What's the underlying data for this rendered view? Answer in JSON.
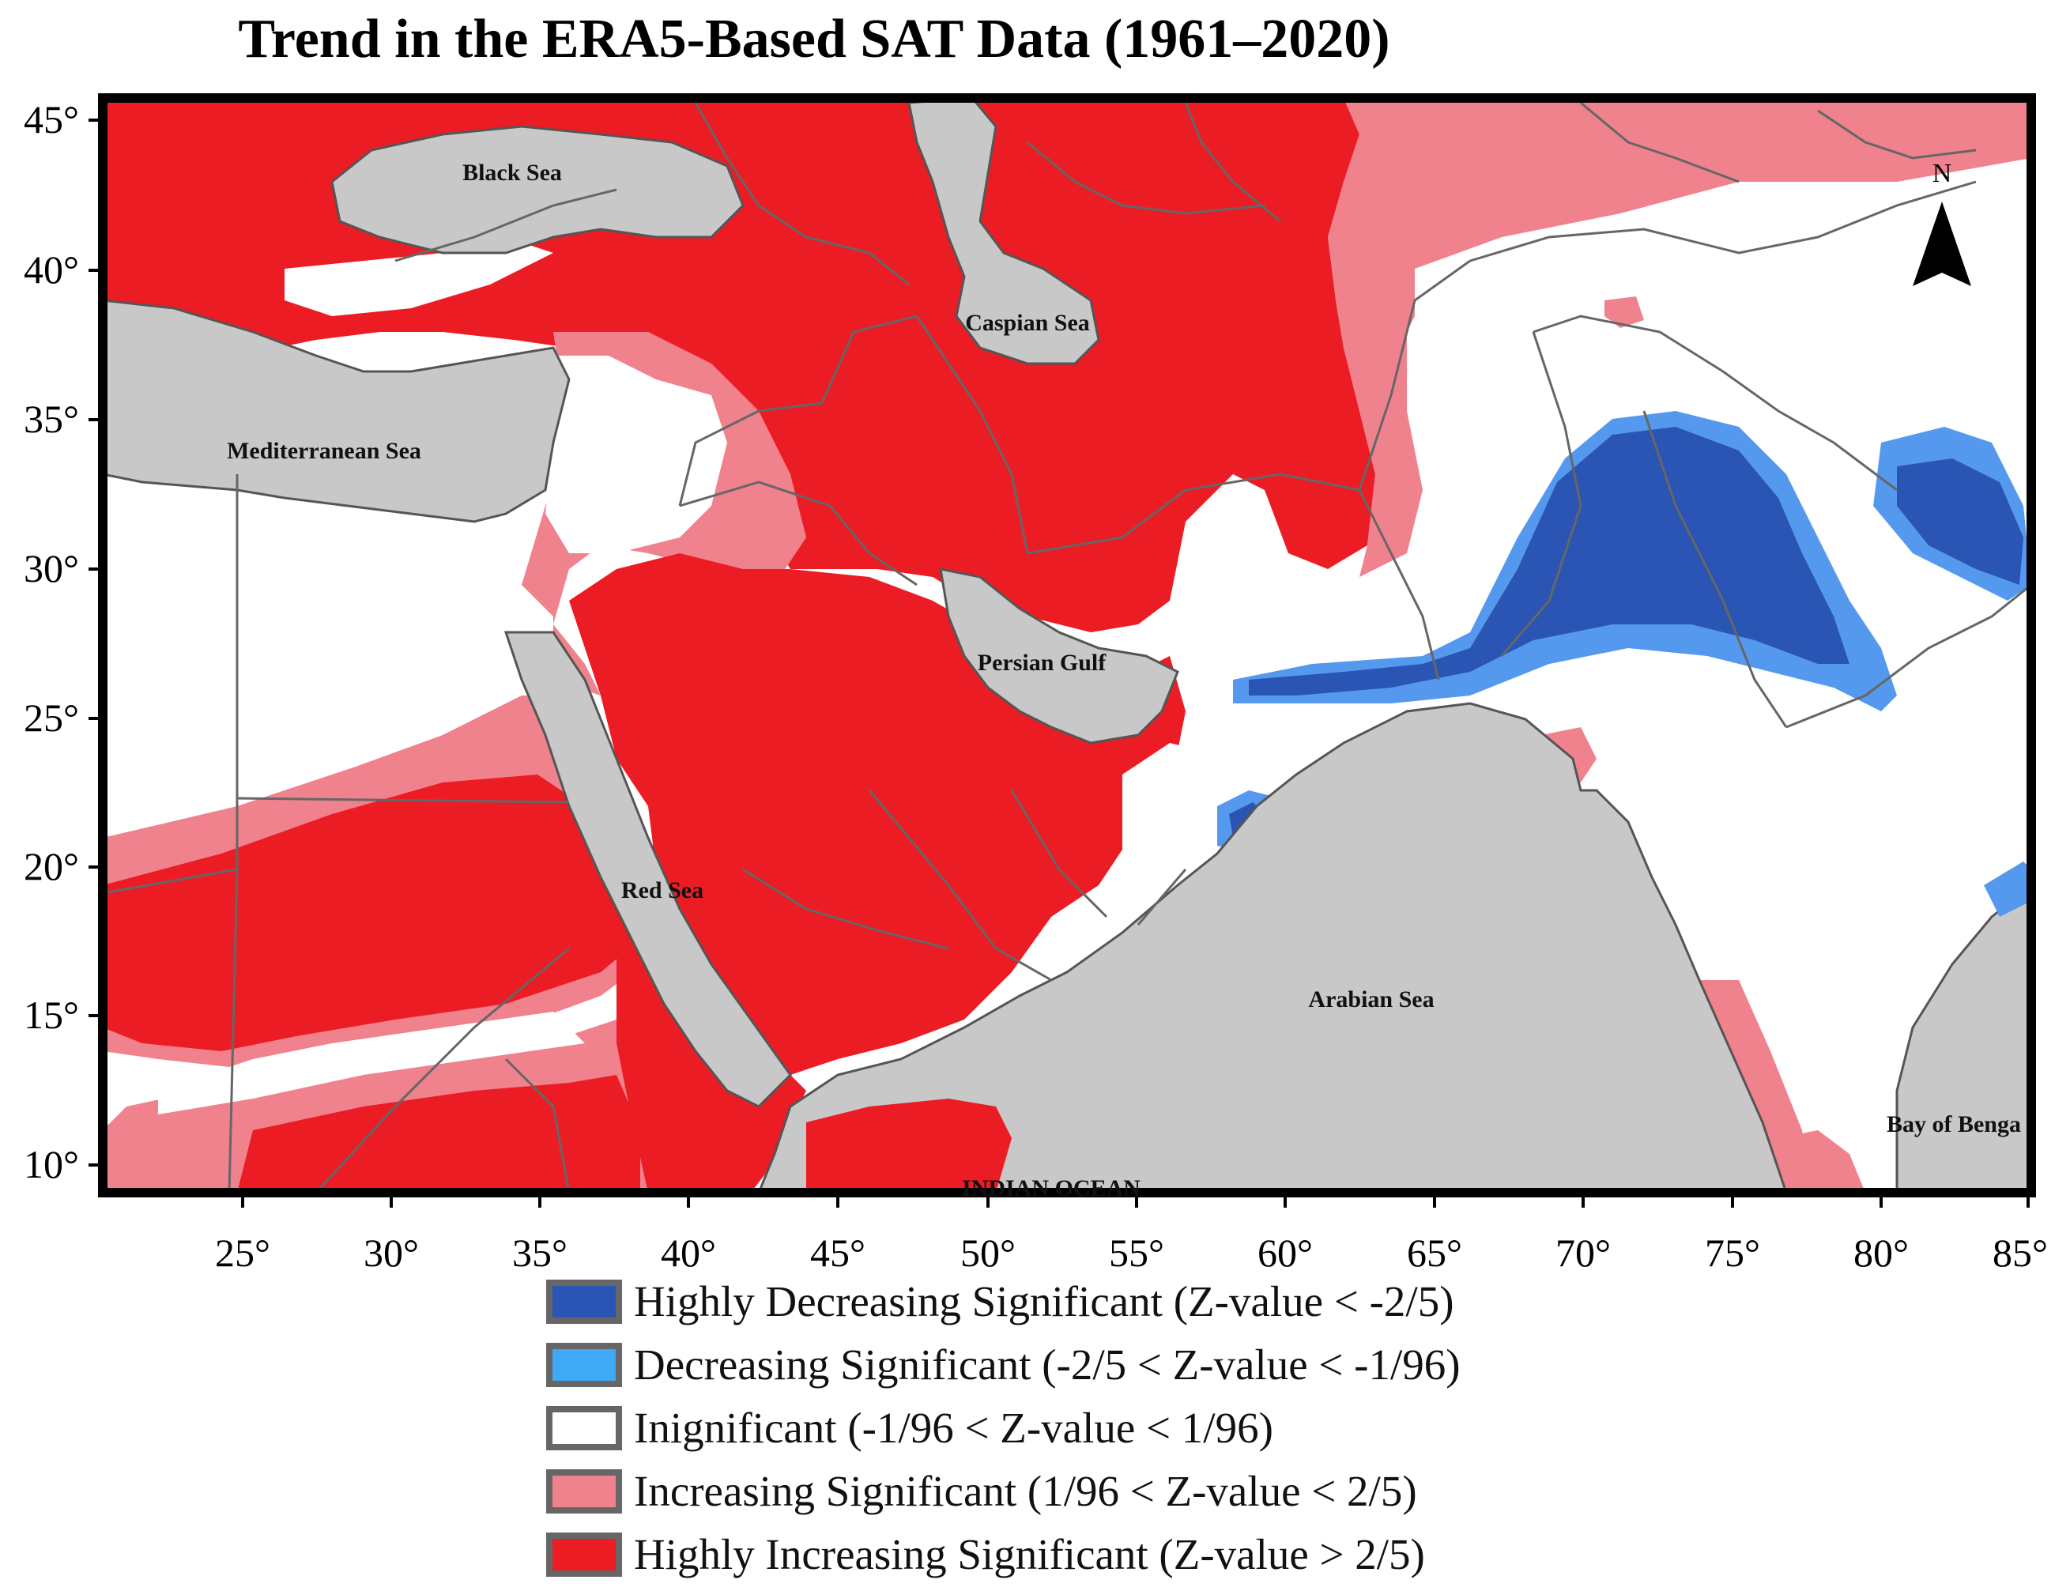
{
  "title": "Trend in the ERA5-Based SAT Data (1961–2020)",
  "colors": {
    "sea": "#c8c8c8",
    "insignificant": "#ffffff",
    "increasing": "#f0707e",
    "highly_increasing": "#ec1c24",
    "decreasing": "#5599ee",
    "highly_decreasing": "#2a55b5",
    "border": "#555555",
    "frame": "#000000"
  },
  "axes": {
    "lat_ticks": [
      "45°",
      "40°",
      "35°",
      "30°",
      "25°",
      "20°",
      "15°",
      "10°"
    ],
    "lon_ticks": [
      "25°",
      "30°",
      "35°",
      "40°",
      "45°",
      "50°",
      "55°",
      "60°",
      "65°",
      "70°",
      "75°",
      "80°",
      "85°"
    ]
  },
  "sea_labels": {
    "black_sea": "Black Sea",
    "caspian_sea": "Caspian Sea",
    "mediterranean_sea": "Mediterranean Sea",
    "persian_gulf": "Persian Gulf",
    "red_sea": "Red Sea",
    "arabian_sea": "Arabian Sea",
    "bay_of_bengal": "Bay of Benga",
    "indian_ocean": "INDIAN OCEAN"
  },
  "north_arrow": {
    "label": "N",
    "icon": "north-arrow-icon"
  },
  "legend": [
    {
      "key": "highly_decreasing",
      "label": "Highly Decreasing Significant (Z-value < -2/5)",
      "color": "#2a55b5"
    },
    {
      "key": "decreasing",
      "label": "Decreasing Significant (-2/5 < Z-value < -1/96)",
      "color": "#3fa9f5"
    },
    {
      "key": "insignificant",
      "label": "Inignificant (-1/96 < Z-value < 1/96)",
      "color": "#ffffff"
    },
    {
      "key": "increasing",
      "label": "Increasing Significant (1/96 < Z-value < 2/5)",
      "color": "#f0828e"
    },
    {
      "key": "highly_increasing",
      "label": "Highly Increasing Significant (Z-value > 2/5)",
      "color": "#ec1c24"
    }
  ]
}
